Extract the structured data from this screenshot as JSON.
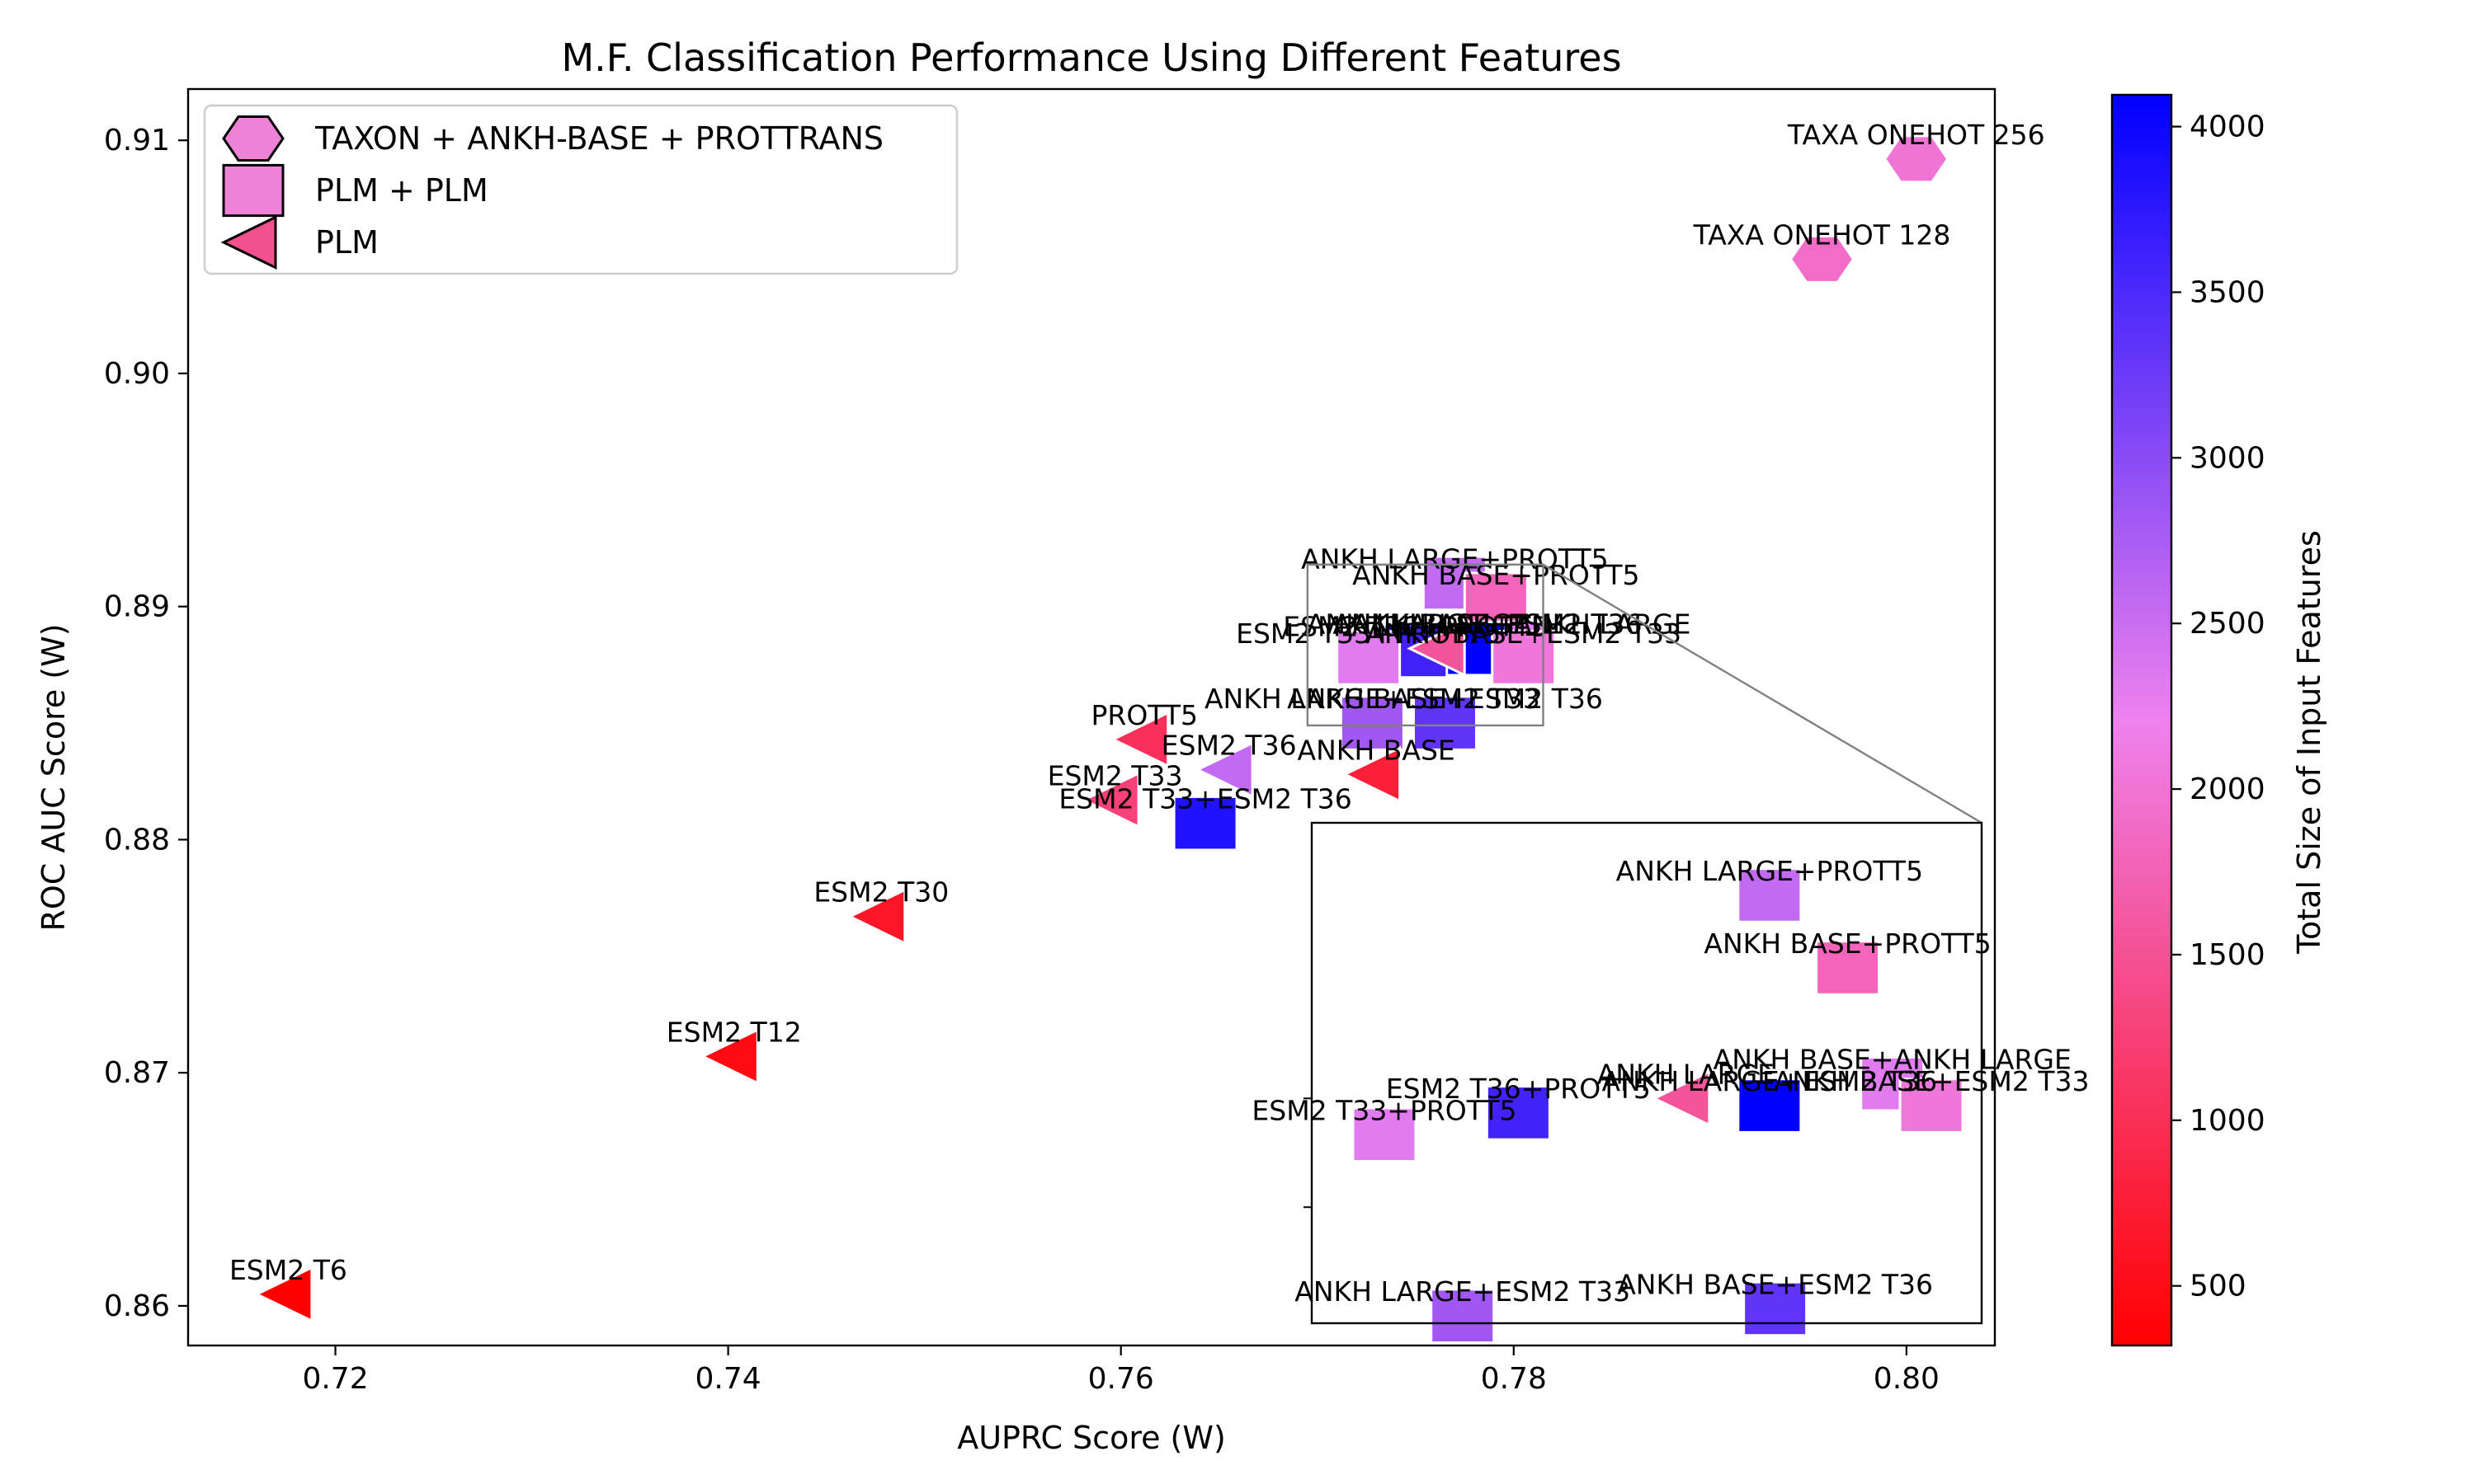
{
  "chart_data": {
    "type": "scatter",
    "title": "M.F. Classification Performance Using Different Features",
    "xlabel": "AUPRC Score (W)",
    "ylabel": "ROC AUC Score (W)",
    "xlim": [
      0.7125,
      0.8045
    ],
    "ylim": [
      0.8583,
      0.9122
    ],
    "xticks": [
      0.72,
      0.74,
      0.76,
      0.78,
      0.8
    ],
    "yticks": [
      0.86,
      0.87,
      0.88,
      0.89,
      0.9,
      0.91
    ],
    "grid": false,
    "legend_position": "top-left",
    "legend": [
      {
        "label": "TAXON + ANKH-BASE + PROTTRANS",
        "marker": "hexagon",
        "color": "#ee82d6"
      },
      {
        "label": "PLM + PLM",
        "marker": "square",
        "color": "#ee82d6"
      },
      {
        "label": "PLM",
        "marker": "triangle-left",
        "color": "#f0508c"
      }
    ],
    "colorbar": {
      "label": "Total Size of Input Features",
      "range": [
        320,
        4096
      ],
      "ticks": [
        500,
        1000,
        1500,
        2000,
        2500,
        3000,
        3500,
        4000
      ],
      "colors": [
        "#ff0000",
        "#ee82ee",
        "#0000ff"
      ]
    },
    "points": [
      {
        "label": "TAXA ONEHOT 256",
        "x": 0.8005,
        "y": 0.9092,
        "group": "TAXON + ANKH-BASE + PROTTRANS",
        "features": 2000
      },
      {
        "label": "TAXA ONEHOT 128",
        "x": 0.7957,
        "y": 0.9049,
        "group": "TAXON + ANKH-BASE + PROTTRANS",
        "features": 1900
      },
      {
        "label": "ANKH LARGE+PROTT5",
        "x": 0.777,
        "y": 0.891,
        "group": "PLM + PLM",
        "features": 2560
      },
      {
        "label": "ANKH BASE+PROTT5",
        "x": 0.7791,
        "y": 0.8903,
        "group": "PLM + PLM",
        "features": 1792
      },
      {
        "label": "ANKH BASE+ANKH LARGE",
        "x": 0.7799,
        "y": 0.8882,
        "group": "PLM + PLM",
        "features": 2304
      },
      {
        "label": "ANKH LARGE+ESM2 T36",
        "x": 0.778,
        "y": 0.8882,
        "group": "PLM + PLM",
        "features": 4096
      },
      {
        "label": "ESM2 T36+PROTT5",
        "x": 0.775,
        "y": 0.8881,
        "group": "PLM + PLM",
        "features": 3584
      },
      {
        "label": "ESM2 T33+PROTT5",
        "x": 0.7726,
        "y": 0.8878,
        "group": "PLM + PLM",
        "features": 2304
      },
      {
        "label": "ANKH BASE+ESM2 T33",
        "x": 0.7805,
        "y": 0.8878,
        "group": "PLM + PLM",
        "features": 2048
      },
      {
        "label": "ANKH LARGE",
        "x": 0.7763,
        "y": 0.8882,
        "group": "PLM",
        "features": 1536
      },
      {
        "label": "ANKH LARGE+ESM2 T33",
        "x": 0.7728,
        "y": 0.885,
        "group": "PLM + PLM",
        "features": 2816
      },
      {
        "label": "ANKH BASE+ESM2 T36",
        "x": 0.7765,
        "y": 0.885,
        "group": "PLM + PLM",
        "features": 3328
      },
      {
        "label": "ANKH BASE",
        "x": 0.773,
        "y": 0.8828,
        "group": "PLM",
        "features": 768
      },
      {
        "label": "PROTT5",
        "x": 0.7612,
        "y": 0.8843,
        "group": "PLM",
        "features": 1024
      },
      {
        "label": "ESM2 T36",
        "x": 0.7655,
        "y": 0.883,
        "group": "PLM",
        "features": 2560
      },
      {
        "label": "ESM2 T33",
        "x": 0.7597,
        "y": 0.8817,
        "group": "PLM",
        "features": 1280
      },
      {
        "label": "ESM2 T33+ESM2 T36",
        "x": 0.7643,
        "y": 0.8807,
        "group": "PLM + PLM",
        "features": 3840
      },
      {
        "label": "ESM2 T30",
        "x": 0.7478,
        "y": 0.8767,
        "group": "PLM",
        "features": 640
      },
      {
        "label": "ESM2 T12",
        "x": 0.7403,
        "y": 0.8707,
        "group": "PLM",
        "features": 480
      },
      {
        "label": "ESM2 T6",
        "x": 0.7176,
        "y": 0.8605,
        "group": "PLM",
        "features": 320
      }
    ],
    "inset": {
      "xlim": [
        0.7695,
        0.7815
      ],
      "ylim": [
        0.8849,
        0.8918
      ],
      "points": [
        {
          "label": "ANKH LARGE+PROTT5",
          "x": 0.7777,
          "y": 0.8908,
          "group": "PLM + PLM",
          "features": 2560
        },
        {
          "label": "ANKH BASE+PROTT5",
          "x": 0.7791,
          "y": 0.8898,
          "group": "PLM + PLM",
          "features": 1792
        },
        {
          "label": "ANKH BASE+ANKH LARGE",
          "x": 0.7799,
          "y": 0.8882,
          "group": "PLM + PLM",
          "features": 2304
        },
        {
          "label": "ANKH BASE+ESM2 T33",
          "x": 0.7806,
          "y": 0.8879,
          "group": "PLM + PLM",
          "features": 2048
        },
        {
          "label": "ANKH LARGE+ESM2 T36",
          "x": 0.7777,
          "y": 0.8879,
          "group": "PLM + PLM",
          "features": 4096
        },
        {
          "label": "ANKH LARGE",
          "x": 0.7762,
          "y": 0.888,
          "group": "PLM",
          "features": 1536
        },
        {
          "label": "ESM2 T36+PROTT5",
          "x": 0.7732,
          "y": 0.8878,
          "group": "PLM + PLM",
          "features": 3584
        },
        {
          "label": "ESM2 T33+PROTT5",
          "x": 0.7708,
          "y": 0.8875,
          "group": "PLM + PLM",
          "features": 2304
        },
        {
          "label": "ANKH LARGE+ESM2 T33",
          "x": 0.7722,
          "y": 0.885,
          "group": "PLM + PLM",
          "features": 2816
        },
        {
          "label": "ANKH BASE+ESM2 T36",
          "x": 0.7778,
          "y": 0.8851,
          "group": "PLM + PLM",
          "features": 3328
        }
      ]
    }
  }
}
